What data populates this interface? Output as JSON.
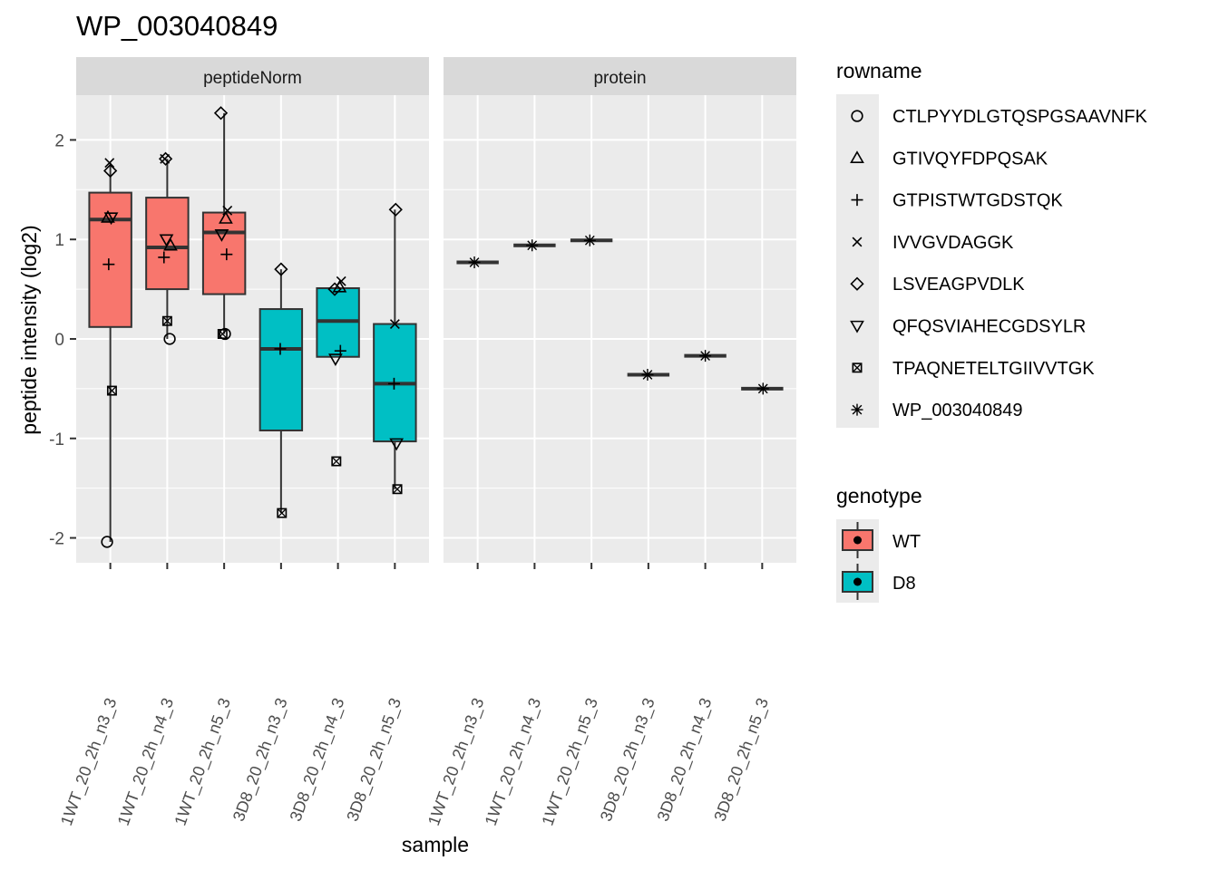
{
  "chart_data": {
    "type": "boxplot",
    "title": "WP_003040849",
    "xlabel": "sample",
    "ylabel": "peptide intensity (log2)",
    "ylim": [
      -2.25,
      2.45
    ],
    "yticks": [
      -2,
      -1,
      0,
      1,
      2
    ],
    "grid": true,
    "legend_position": "right",
    "facets": [
      "peptideNorm",
      "protein"
    ],
    "categories": [
      "1WT_20_2h_n3_3",
      "1WT_20_2h_n4_3",
      "1WT_20_2h_n5_3",
      "3D8_20_2h_n3_3",
      "3D8_20_2h_n4_3",
      "3D8_20_2h_n5_3"
    ],
    "genotype_of_sample": [
      "WT",
      "WT",
      "WT",
      "D8",
      "D8",
      "D8"
    ],
    "legends": {
      "rowname": {
        "title": "rowname",
        "items": [
          {
            "label": "CTLPYYDLGTQSPGSAAVNFK",
            "shape": "circle"
          },
          {
            "label": "GTIVQYFDPQSAK",
            "shape": "triangle-up"
          },
          {
            "label": "GTPISTWTGDSTQK",
            "shape": "plus"
          },
          {
            "label": "IVVGVDAGGK",
            "shape": "cross"
          },
          {
            "label": "LSVEAGPVDLK",
            "shape": "diamond"
          },
          {
            "label": "QFQSVIAHECGDSYLR",
            "shape": "triangle-down"
          },
          {
            "label": "TPAQNETELTGIIVVTGK",
            "shape": "square-cross"
          },
          {
            "label": "WP_003040849",
            "shape": "asterisk"
          }
        ]
      },
      "genotype": {
        "title": "genotype",
        "items": [
          {
            "label": "WT",
            "color": "#F8766D"
          },
          {
            "label": "D8",
            "color": "#00BFC4"
          }
        ]
      }
    },
    "boxes": {
      "peptideNorm": [
        {
          "lower": -2.04,
          "q1": 0.12,
          "median": 1.2,
          "q3": 1.47,
          "upper": 1.77
        },
        {
          "lower": 0.0,
          "q1": 0.5,
          "median": 0.92,
          "q3": 1.42,
          "upper": 1.81
        },
        {
          "lower": 0.05,
          "q1": 0.45,
          "median": 1.07,
          "q3": 1.27,
          "upper": 2.27
        },
        {
          "lower": -1.75,
          "q1": -0.92,
          "median": -0.1,
          "q3": 0.3,
          "upper": 0.7
        },
        {
          "lower": -0.18,
          "q1": -0.18,
          "median": 0.18,
          "q3": 0.51,
          "upper": 0.51
        },
        {
          "lower": -1.51,
          "q1": -1.03,
          "median": -0.45,
          "q3": 0.15,
          "upper": 1.3
        }
      ],
      "protein": [
        {
          "median": 0.77
        },
        {
          "median": 0.94
        },
        {
          "median": 0.99
        },
        {
          "median": -0.36
        },
        {
          "median": -0.17
        },
        {
          "median": -0.5
        }
      ]
    },
    "points": {
      "peptideNorm": [
        {
          "sample": 0,
          "peptide": "CTLPYYDLGTQSPGSAAVNFK",
          "y": -2.04
        },
        {
          "sample": 0,
          "peptide": "GTIVQYFDPQSAK",
          "y": 1.22
        },
        {
          "sample": 0,
          "peptide": "GTPISTWTGDSTQK",
          "y": 0.75
        },
        {
          "sample": 0,
          "peptide": "IVVGVDAGGK",
          "y": 1.77
        },
        {
          "sample": 0,
          "peptide": "LSVEAGPVDLK",
          "y": 1.69
        },
        {
          "sample": 0,
          "peptide": "QFQSVIAHECGDSYLR",
          "y": 1.22
        },
        {
          "sample": 0,
          "peptide": "TPAQNETELTGIIVVTGK",
          "y": -0.52
        },
        {
          "sample": 1,
          "peptide": "CTLPYYDLGTQSPGSAAVNFK",
          "y": 0.0
        },
        {
          "sample": 1,
          "peptide": "GTIVQYFDPQSAK",
          "y": 0.94
        },
        {
          "sample": 1,
          "peptide": "GTPISTWTGDSTQK",
          "y": 0.82
        },
        {
          "sample": 1,
          "peptide": "IVVGVDAGGK",
          "y": 1.81
        },
        {
          "sample": 1,
          "peptide": "LSVEAGPVDLK",
          "y": 1.81
        },
        {
          "sample": 1,
          "peptide": "QFQSVIAHECGDSYLR",
          "y": 1.0
        },
        {
          "sample": 1,
          "peptide": "TPAQNETELTGIIVVTGK",
          "y": 0.18
        },
        {
          "sample": 2,
          "peptide": "CTLPYYDLGTQSPGSAAVNFK",
          "y": 0.05
        },
        {
          "sample": 2,
          "peptide": "GTIVQYFDPQSAK",
          "y": 1.21
        },
        {
          "sample": 2,
          "peptide": "GTPISTWTGDSTQK",
          "y": 0.85
        },
        {
          "sample": 2,
          "peptide": "IVVGVDAGGK",
          "y": 1.29
        },
        {
          "sample": 2,
          "peptide": "LSVEAGPVDLK",
          "y": 2.27
        },
        {
          "sample": 2,
          "peptide": "QFQSVIAHECGDSYLR",
          "y": 1.05
        },
        {
          "sample": 2,
          "peptide": "TPAQNETELTGIIVVTGK",
          "y": 0.05
        },
        {
          "sample": 3,
          "peptide": "GTPISTWTGDSTQK",
          "y": -0.1
        },
        {
          "sample": 3,
          "peptide": "LSVEAGPVDLK",
          "y": 0.7
        },
        {
          "sample": 3,
          "peptide": "TPAQNETELTGIIVVTGK",
          "y": -1.75
        },
        {
          "sample": 4,
          "peptide": "GTIVQYFDPQSAK",
          "y": 0.52
        },
        {
          "sample": 4,
          "peptide": "GTPISTWTGDSTQK",
          "y": -0.12
        },
        {
          "sample": 4,
          "peptide": "IVVGVDAGGK",
          "y": 0.58
        },
        {
          "sample": 4,
          "peptide": "LSVEAGPVDLK",
          "y": 0.5
        },
        {
          "sample": 4,
          "peptide": "QFQSVIAHECGDSYLR",
          "y": -0.2
        },
        {
          "sample": 4,
          "peptide": "TPAQNETELTGIIVVTGK",
          "y": -1.23
        },
        {
          "sample": 5,
          "peptide": "GTPISTWTGDSTQK",
          "y": -0.45
        },
        {
          "sample": 5,
          "peptide": "IVVGVDAGGK",
          "y": 0.15
        },
        {
          "sample": 5,
          "peptide": "LSVEAGPVDLK",
          "y": 1.3
        },
        {
          "sample": 5,
          "peptide": "QFQSVIAHECGDSYLR",
          "y": -1.05
        },
        {
          "sample": 5,
          "peptide": "TPAQNETELTGIIVVTGK",
          "y": -1.51
        }
      ],
      "protein": [
        {
          "sample": 0,
          "peptide": "WP_003040849",
          "y": 0.77
        },
        {
          "sample": 1,
          "peptide": "WP_003040849",
          "y": 0.94
        },
        {
          "sample": 2,
          "peptide": "WP_003040849",
          "y": 0.99
        },
        {
          "sample": 3,
          "peptide": "WP_003040849",
          "y": -0.36
        },
        {
          "sample": 4,
          "peptide": "WP_003040849",
          "y": -0.17
        },
        {
          "sample": 5,
          "peptide": "WP_003040849",
          "y": -0.5
        }
      ]
    }
  }
}
